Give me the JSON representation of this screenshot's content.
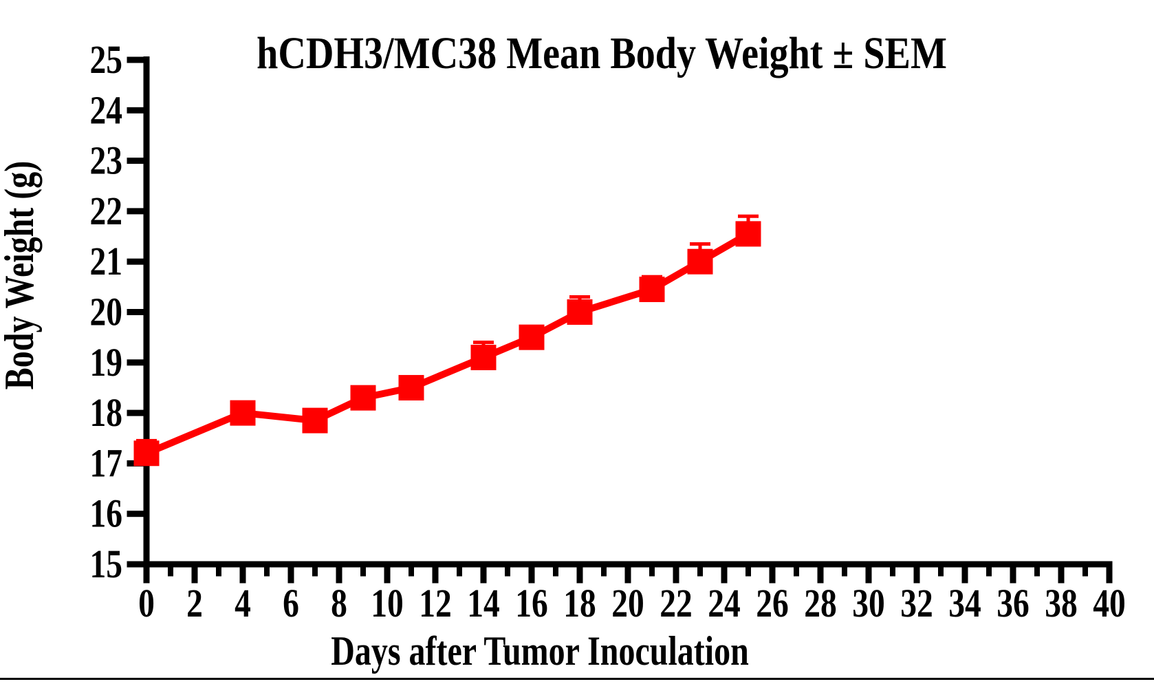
{
  "figure": {
    "background_color": "#FFFFFF",
    "axis_color": "#000000",
    "bottom_rule_color": "#000000"
  },
  "chart_data": {
    "type": "line",
    "title": "hCDH3/MC38 Mean Body Weight ± SEM",
    "xlabel": "Days after Tumor Inoculation",
    "ylabel": "Body Weight (g)",
    "xlim": [
      0,
      40
    ],
    "ylim": [
      15,
      25
    ],
    "x_major_tick_step": 2,
    "x_minor_tick_step": 1,
    "y_major_tick_step": 1,
    "x_tick_labels": [
      0,
      2,
      4,
      6,
      8,
      10,
      12,
      14,
      16,
      18,
      20,
      22,
      24,
      26,
      28,
      30,
      32,
      34,
      36,
      38,
      40
    ],
    "y_tick_labels": [
      15,
      16,
      17,
      18,
      19,
      20,
      21,
      22,
      23,
      24,
      25
    ],
    "grid": false,
    "legend_position": "none",
    "error_bars": "mean + SEM, upper caps visible",
    "series": [
      {
        "name": "hCDH3/MC38 mean body weight",
        "color": "#FF0000",
        "marker": "square",
        "x": [
          0,
          4,
          7,
          9,
          11,
          14,
          16,
          18,
          21,
          23,
          25
        ],
        "y": [
          17.2,
          18.0,
          17.85,
          18.3,
          18.5,
          19.1,
          19.5,
          20.0,
          20.45,
          21.0,
          21.55
        ],
        "sem": [
          0.25,
          0.15,
          0.15,
          0.15,
          0.15,
          0.3,
          0.15,
          0.3,
          0.25,
          0.35,
          0.35
        ]
      }
    ]
  }
}
